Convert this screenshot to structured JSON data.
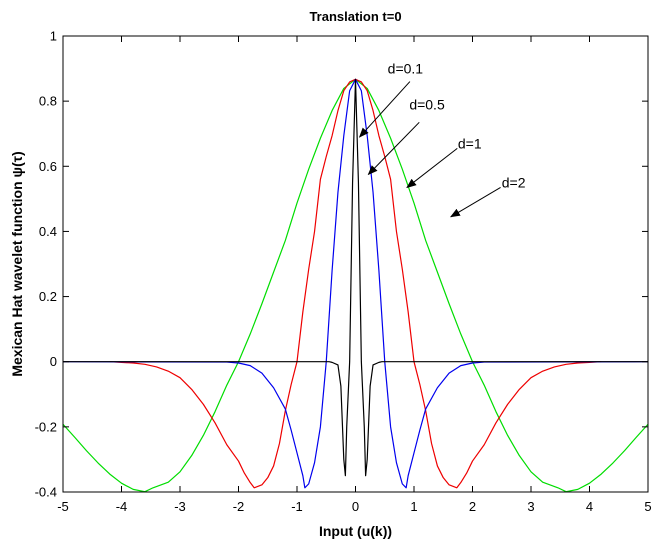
{
  "chart_data": {
    "type": "line",
    "title": "Translation t=0",
    "xlabel": "Input (u(k))",
    "ylabel": "Mexican Hat wavelet function  ψ(τ)",
    "xlim": [
      -5,
      5
    ],
    "ylim": [
      -0.4,
      1
    ],
    "xticks": [
      -5,
      -4,
      -3,
      -2,
      -1,
      0,
      1,
      2,
      3,
      4,
      5
    ],
    "xtick_labels": [
      "-5",
      "-4",
      "-3",
      "-2",
      "-1",
      "0",
      "1",
      "2",
      "3",
      "4",
      "5"
    ],
    "yticks": [
      -0.4,
      -0.2,
      0,
      0.2,
      0.4,
      0.6,
      0.8,
      1
    ],
    "ytick_labels": [
      "-0.4",
      "-0.2",
      "0",
      "0.2",
      "0.4",
      "0.6",
      "0.8",
      "1"
    ],
    "grid": false,
    "series": [
      {
        "name": "d=2",
        "color": "#00dd00",
        "x": [
          -5,
          -4.8,
          -4.6,
          -4.4,
          -4.2,
          -4,
          -3.8,
          -3.6,
          -3.46,
          -3.2,
          -3,
          -2.8,
          -2.6,
          -2.4,
          -2.2,
          -2,
          -1.8,
          -1.6,
          -1.4,
          -1.2,
          -1,
          -0.8,
          -0.6,
          -0.4,
          -0.2,
          0,
          0.2,
          0.4,
          0.6,
          0.8,
          1,
          1.2,
          1.4,
          1.6,
          1.8,
          2,
          2.2,
          2.4,
          2.6,
          2.8,
          3,
          3.2,
          3.46,
          3.6,
          3.8,
          4,
          4.2,
          4.4,
          4.6,
          4.8,
          5
        ],
        "y": [
          -0.192,
          -0.232,
          -0.273,
          -0.311,
          -0.345,
          -0.373,
          -0.392,
          -0.399,
          -0.387,
          -0.37,
          -0.338,
          -0.288,
          -0.226,
          -0.153,
          -0.072,
          0.0,
          0.085,
          0.178,
          0.275,
          0.372,
          0.487,
          0.591,
          0.686,
          0.771,
          0.839,
          0.867,
          0.839,
          0.771,
          0.686,
          0.591,
          0.487,
          0.372,
          0.275,
          0.178,
          0.085,
          0.0,
          -0.072,
          -0.153,
          -0.226,
          -0.288,
          -0.338,
          -0.37,
          -0.387,
          -0.399,
          -0.392,
          -0.373,
          -0.345,
          -0.311,
          -0.273,
          -0.232,
          -0.192
        ]
      },
      {
        "name": "d=1",
        "color": "#ee0000",
        "x": [
          -4.2,
          -4,
          -3.8,
          -3.6,
          -3.4,
          -3.2,
          -3,
          -2.8,
          -2.6,
          -2.4,
          -2.2,
          -2,
          -1.9,
          -1.8,
          -1.732,
          -1.6,
          -1.5,
          -1.4,
          -1.3,
          -1.2,
          -1.1,
          -1,
          -0.9,
          -0.8,
          -0.7,
          -0.6,
          -0.5,
          -0.4,
          -0.3,
          -0.2,
          -0.1,
          0,
          0.1,
          0.2,
          0.3,
          0.4,
          0.5,
          0.6,
          0.7,
          0.8,
          0.9,
          1,
          1.1,
          1.2,
          1.3,
          1.4,
          1.5,
          1.6,
          1.732,
          1.8,
          1.9,
          2,
          2.2,
          2.4,
          2.6,
          2.8,
          3,
          3.2,
          3.4,
          3.6,
          3.8,
          4,
          4.2
        ],
        "y": [
          0.0,
          -0.002,
          -0.004,
          -0.008,
          -0.016,
          -0.029,
          -0.049,
          -0.085,
          -0.131,
          -0.188,
          -0.255,
          -0.305,
          -0.342,
          -0.371,
          -0.387,
          -0.378,
          -0.356,
          -0.32,
          -0.251,
          -0.151,
          -0.07,
          0.0,
          0.153,
          0.284,
          0.4,
          0.56,
          0.63,
          0.694,
          0.771,
          0.832,
          0.859,
          0.867,
          0.859,
          0.832,
          0.771,
          0.694,
          0.63,
          0.56,
          0.4,
          0.284,
          0.153,
          0.0,
          -0.07,
          -0.151,
          -0.251,
          -0.32,
          -0.356,
          -0.378,
          -0.387,
          -0.371,
          -0.342,
          -0.305,
          -0.255,
          -0.188,
          -0.131,
          -0.085,
          -0.049,
          -0.029,
          -0.016,
          -0.008,
          -0.004,
          -0.002,
          0.0
        ]
      },
      {
        "name": "d=0.5",
        "color": "#0000ee",
        "x": [
          -5,
          -2.2,
          -2,
          -1.8,
          -1.6,
          -1.4,
          -1.2,
          -1.1,
          -1,
          -0.9,
          -0.866,
          -0.8,
          -0.7,
          -0.6,
          -0.5,
          -0.4,
          -0.3,
          -0.2,
          -0.1,
          0,
          0.1,
          0.2,
          0.3,
          0.4,
          0.5,
          0.6,
          0.7,
          0.8,
          0.866,
          0.9,
          1,
          1.1,
          1.2,
          1.4,
          1.6,
          1.8,
          2,
          2.2,
          5
        ],
        "y": [
          0.0,
          -0.001,
          -0.004,
          -0.012,
          -0.035,
          -0.08,
          -0.145,
          -0.21,
          -0.28,
          -0.35,
          -0.387,
          -0.375,
          -0.31,
          -0.2,
          0.0,
          0.28,
          0.52,
          0.694,
          0.832,
          0.867,
          0.832,
          0.694,
          0.52,
          0.28,
          0.0,
          -0.2,
          -0.31,
          -0.375,
          -0.387,
          -0.35,
          -0.28,
          -0.21,
          -0.145,
          -0.08,
          -0.035,
          -0.012,
          -0.004,
          -0.001,
          0.0
        ]
      },
      {
        "name": "d=0.1",
        "color": "#000000",
        "x": [
          -5,
          -0.45,
          -0.4,
          -0.3,
          -0.25,
          -0.2,
          -0.173,
          -0.15,
          -0.1,
          -0.05,
          0,
          0.05,
          0.1,
          0.15,
          0.173,
          0.2,
          0.25,
          0.3,
          0.4,
          0.45,
          5
        ],
        "y": [
          0.0,
          0.0,
          -0.002,
          -0.01,
          -0.075,
          -0.3,
          -0.35,
          -0.2,
          0.0,
          0.55,
          0.867,
          0.55,
          0.0,
          -0.2,
          -0.35,
          -0.3,
          -0.075,
          -0.01,
          -0.002,
          0.0,
          0.0
        ]
      }
    ],
    "annotations": [
      {
        "text": "d=0.1",
        "label_at": [
          0.55,
          0.885
        ],
        "arrow_from": [
          0.93,
          0.86
        ],
        "arrow_to": [
          0.07,
          0.69
        ]
      },
      {
        "text": "d=0.5",
        "label_at": [
          0.92,
          0.775
        ],
        "arrow_from": [
          1.09,
          0.735
        ],
        "arrow_to": [
          0.22,
          0.575
        ]
      },
      {
        "text": "d=1",
        "label_at": [
          1.75,
          0.655
        ],
        "arrow_from": [
          1.74,
          0.655
        ],
        "arrow_to": [
          0.88,
          0.535
        ]
      },
      {
        "text": "d=2",
        "label_at": [
          2.5,
          0.535
        ],
        "arrow_from": [
          2.48,
          0.535
        ],
        "arrow_to": [
          1.63,
          0.445
        ]
      }
    ]
  }
}
